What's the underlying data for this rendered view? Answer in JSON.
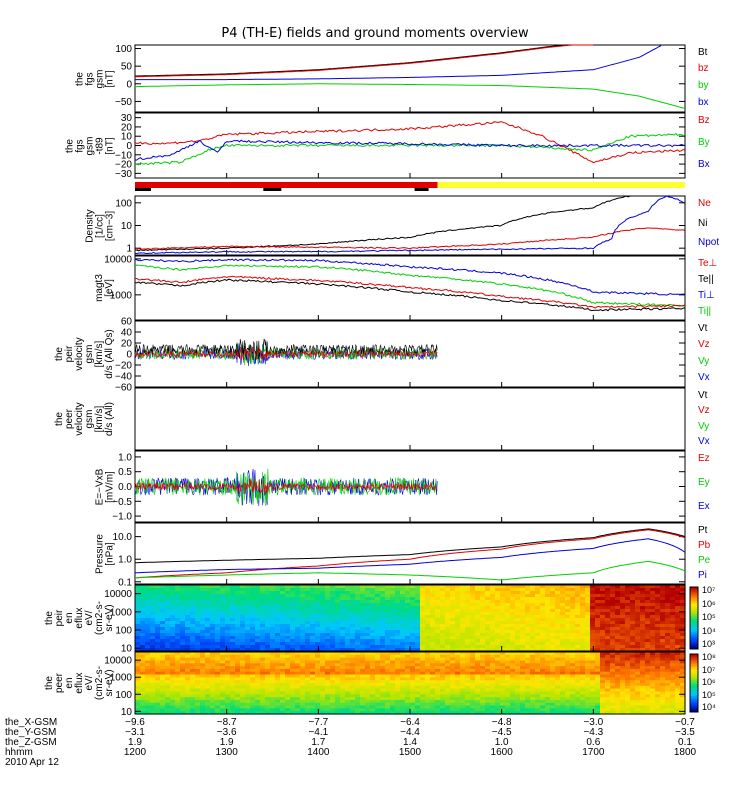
{
  "title": "P4 (TH-E) fields and ground moments overview",
  "colors": {
    "black": "#000000",
    "red": "#e00000",
    "green": "#00d000",
    "blue": "#0000e0",
    "yellow": "#ffff30"
  },
  "time": {
    "start": 1200,
    "end": 1800
  },
  "panels": [
    {
      "key": "fgs",
      "ylabel": [
        "the",
        "fgs",
        "gsm",
        "[nT]"
      ],
      "ticks": [
        "100",
        "50",
        "0",
        "−50"
      ],
      "tickvals": [
        100,
        50,
        0,
        -50
      ],
      "ymin": -80,
      "ymax": 110,
      "legend": [
        {
          "t": "Bt",
          "c": "black"
        },
        {
          "t": "bz",
          "c": "red"
        },
        {
          "t": "by",
          "c": "green"
        },
        {
          "t": "bx",
          "c": "blue"
        }
      ]
    },
    {
      "key": "fgs_dsl",
      "ylabel": [
        "the",
        "fgs",
        "gsm",
        "-t89",
        "[nT]"
      ],
      "ticks": [
        "30",
        "20",
        "10",
        "0",
        "−10",
        "−20",
        "−30"
      ],
      "tickvals": [
        30,
        20,
        10,
        0,
        -10,
        -20,
        -30
      ],
      "ymin": -35,
      "ymax": 35,
      "legend": [
        {
          "t": "Bz",
          "c": "red"
        },
        {
          "t": "By",
          "c": "green"
        },
        {
          "t": "Bx",
          "c": "blue"
        }
      ]
    },
    {
      "key": "density",
      "ylabel": [
        "Density",
        "[1/cc]",
        "[cm−3]"
      ],
      "ticks": [
        "100",
        "10",
        "1"
      ],
      "tickvals": [
        100,
        10,
        1
      ],
      "log": true,
      "ymin": 0.5,
      "ymax": 200,
      "legend": [
        {
          "t": "Ne",
          "c": "red"
        },
        {
          "t": "Ni",
          "c": "black"
        },
        {
          "t": "Npot",
          "c": "blue"
        }
      ]
    },
    {
      "key": "temp",
      "ylabel": [
        "magt3",
        "[eV]"
      ],
      "ticks": [
        "10000",
        "1000"
      ],
      "tickvals": [
        10000,
        1000
      ],
      "log": true,
      "ymin": 200,
      "ymax": 12000,
      "legend": [
        {
          "t": "Te⊥",
          "c": "red"
        },
        {
          "t": "Te||",
          "c": "black"
        },
        {
          "t": "Ti⊥",
          "c": "blue"
        },
        {
          "t": "Ti||",
          "c": "green"
        }
      ]
    },
    {
      "key": "peir_vel",
      "ylabel": [
        "the",
        "peir",
        "velocity",
        "gsm",
        "[km/s]",
        "d/s (All Qs)"
      ],
      "ticks": [
        "60",
        "40",
        "20",
        "0",
        "−20",
        "−40",
        "−60"
      ],
      "tickvals": [
        60,
        40,
        20,
        0,
        -20,
        -40,
        -60
      ],
      "ymin": -60,
      "ymax": 60,
      "legend": [
        {
          "t": "Vt",
          "c": "black"
        },
        {
          "t": "Vz",
          "c": "red"
        },
        {
          "t": "Vy",
          "c": "green"
        },
        {
          "t": "Vx",
          "c": "blue"
        }
      ]
    },
    {
      "key": "peer_vel",
      "ylabel": [
        "the",
        "peer",
        "velocity",
        "gsm",
        "[km/s]",
        "d/s (All)"
      ],
      "ticks": [],
      "tickvals": [],
      "ymin": -1,
      "ymax": 1,
      "legend": [
        {
          "t": "Vt",
          "c": "black"
        },
        {
          "t": "Vz",
          "c": "red"
        },
        {
          "t": "Vy",
          "c": "green"
        },
        {
          "t": "Vx",
          "c": "blue"
        }
      ]
    },
    {
      "key": "efield",
      "ylabel": [
        "E=−VxB",
        "[mV/m]"
      ],
      "ticks": [
        "1.0",
        "0.5",
        "0.0",
        "−0.5",
        "−1.0"
      ],
      "tickvals": [
        1,
        0.5,
        0,
        -0.5,
        -1
      ],
      "ymin": -1.2,
      "ymax": 1.2,
      "legend": [
        {
          "t": "Ez",
          "c": "red"
        },
        {
          "t": "Ey",
          "c": "green"
        },
        {
          "t": "Ex",
          "c": "blue"
        }
      ]
    },
    {
      "key": "pressure",
      "ylabel": [
        "Pressure",
        "[nPa]"
      ],
      "ticks": [
        "10.0",
        "1.0",
        "0.1"
      ],
      "tickvals": [
        10,
        1,
        0.1
      ],
      "log": true,
      "ymin": 0.08,
      "ymax": 40,
      "legend": [
        {
          "t": "Pt",
          "c": "black"
        },
        {
          "t": "Pb",
          "c": "red"
        },
        {
          "t": "Pe",
          "c": "green"
        },
        {
          "t": "Pi",
          "c": "blue"
        }
      ]
    },
    {
      "key": "peir_spec",
      "ylabel": [
        "the",
        "peir",
        "en",
        "eflux",
        "eV/",
        "(cm2-s-",
        "sr-eV)"
      ],
      "ticks": [
        "10000",
        "1000",
        "100",
        "10"
      ],
      "tickvals": [
        10000,
        1000,
        100,
        10
      ],
      "log": true,
      "ymin": 7,
      "ymax": 30000,
      "cbar": [
        "10⁷",
        "10⁶",
        "10⁵",
        "10⁴",
        "10³"
      ]
    },
    {
      "key": "peer_spec",
      "ylabel": [
        "the",
        "peer",
        "en",
        "eflux",
        "eV/",
        "(cm2-s-",
        "sr-eV)"
      ],
      "ticks": [
        "10000",
        "1000",
        "100",
        "10"
      ],
      "tickvals": [
        10000,
        1000,
        100,
        10
      ],
      "log": true,
      "ymin": 7,
      "ymax": 30000,
      "cbar": [
        "10⁸",
        "10⁷",
        "10⁶",
        "10⁵",
        "10⁴"
      ]
    }
  ],
  "chart_data": {
    "type": "line",
    "title": "P4 (TH-E) fields and ground moments overview",
    "x_times": [
      1200,
      1300,
      1400,
      1500,
      1600,
      1700,
      1800
    ],
    "series": [
      {
        "panel": "fgs",
        "name": "Bt",
        "x": [
          1200,
          1300,
          1400,
          1500,
          1600,
          1650,
          1700
        ],
        "values": [
          22,
          28,
          40,
          60,
          88,
          105,
          118
        ]
      },
      {
        "panel": "fgs",
        "name": "bz",
        "x": [
          1200,
          1300,
          1400,
          1500,
          1600,
          1650,
          1700
        ],
        "values": [
          20,
          26,
          38,
          58,
          86,
          103,
          116
        ]
      },
      {
        "panel": "fgs",
        "name": "by",
        "x": [
          1200,
          1300,
          1400,
          1500,
          1600,
          1700,
          1750,
          1800
        ],
        "values": [
          -8,
          -3,
          0,
          -2,
          -5,
          -15,
          -35,
          -70
        ]
      },
      {
        "panel": "fgs",
        "name": "bx",
        "x": [
          1200,
          1300,
          1400,
          1500,
          1600,
          1700,
          1750,
          1775
        ],
        "values": [
          12,
          12,
          14,
          18,
          24,
          40,
          75,
          110
        ]
      },
      {
        "panel": "fgs_dsl",
        "name": "Bz",
        "x": [
          1200,
          1230,
          1270,
          1300,
          1400,
          1500,
          1600,
          1640,
          1700,
          1740,
          1800
        ],
        "values": [
          3,
          2,
          5,
          12,
          15,
          18,
          25,
          12,
          -18,
          -8,
          -5
        ]
      },
      {
        "panel": "fgs_dsl",
        "name": "By",
        "x": [
          1200,
          1250,
          1280,
          1300,
          1400,
          1500,
          1600,
          1700,
          1740,
          1800
        ],
        "values": [
          -20,
          -18,
          -5,
          0,
          0,
          0,
          0,
          -5,
          10,
          12
        ]
      },
      {
        "panel": "fgs_dsl",
        "name": "Bx",
        "x": [
          1200,
          1240,
          1270,
          1290,
          1300,
          1400,
          1500,
          1600,
          1700,
          1800
        ],
        "values": [
          -15,
          -10,
          5,
          -8,
          5,
          3,
          2,
          0,
          0,
          0
        ]
      },
      {
        "panel": "density",
        "name": "Ni",
        "x": [
          1200,
          1300,
          1400,
          1500,
          1600,
          1700,
          1740
        ],
        "values": [
          0.8,
          1.0,
          1.5,
          3,
          10,
          60,
          200
        ]
      },
      {
        "panel": "density",
        "name": "Ne",
        "x": [
          1200,
          1300,
          1400,
          1500,
          1600,
          1700,
          1760,
          1800
        ],
        "values": [
          0.9,
          1.2,
          1.1,
          1.0,
          1.5,
          3.0,
          8.0,
          6.0
        ]
      },
      {
        "panel": "density",
        "name": "Npot",
        "x": [
          1200,
          1300,
          1400,
          1500,
          1600,
          1700,
          1720,
          1760,
          1780,
          1800
        ],
        "values": [
          0.6,
          0.7,
          0.7,
          0.8,
          0.9,
          1.0,
          2.5,
          40,
          200,
          100
        ]
      },
      {
        "panel": "temp",
        "name": "Ti⊥",
        "x": [
          1200,
          1250,
          1300,
          1400,
          1500,
          1600,
          1700,
          1800
        ],
        "values": [
          9500,
          8500,
          9500,
          9000,
          6000,
          4000,
          1200,
          1000
        ]
      },
      {
        "panel": "temp",
        "name": "Ti||",
        "x": [
          1200,
          1250,
          1300,
          1400,
          1500,
          1600,
          1700,
          1800
        ],
        "values": [
          6500,
          5000,
          6500,
          6000,
          3500,
          2000,
          600,
          500
        ]
      },
      {
        "panel": "temp",
        "name": "Te⊥",
        "x": [
          1200,
          1250,
          1300,
          1400,
          1500,
          1600,
          1700,
          1800
        ],
        "values": [
          2800,
          2200,
          3200,
          2500,
          1600,
          900,
          450,
          500
        ]
      },
      {
        "panel": "temp",
        "name": "Te||",
        "x": [
          1200,
          1250,
          1300,
          1400,
          1500,
          1600,
          1700,
          1800
        ],
        "values": [
          2200,
          1800,
          2600,
          2000,
          1200,
          700,
          380,
          420
        ]
      },
      {
        "panel": "pressure",
        "name": "Pt",
        "x": [
          1200,
          1300,
          1400,
          1500,
          1600,
          1700,
          1760,
          1800
        ],
        "values": [
          0.7,
          0.9,
          1.1,
          1.6,
          3.5,
          9,
          22,
          10
        ]
      },
      {
        "panel": "pressure",
        "name": "Pb",
        "x": [
          1200,
          1300,
          1400,
          1500,
          1600,
          1700,
          1760,
          1800
        ],
        "values": [
          0.15,
          0.25,
          0.5,
          1.0,
          2.8,
          8,
          20,
          9
        ]
      },
      {
        "panel": "pressure",
        "name": "Pi",
        "x": [
          1200,
          1300,
          1400,
          1500,
          1600,
          1700,
          1760,
          1800
        ],
        "values": [
          0.25,
          0.35,
          0.4,
          0.6,
          1.2,
          3,
          8,
          2
        ]
      },
      {
        "panel": "pressure",
        "name": "Pe",
        "x": [
          1200,
          1300,
          1400,
          1500,
          1600,
          1700,
          1760,
          1800
        ],
        "values": [
          0.15,
          0.2,
          0.25,
          0.2,
          0.12,
          0.25,
          0.8,
          0.3
        ]
      }
    ]
  },
  "footer": {
    "rows": [
      {
        "label": "the_X-GSM",
        "vals": [
          "−9.6",
          "−8.7",
          "−7.7",
          "−6.4",
          "−4.8",
          "−3.0",
          "−0.7"
        ]
      },
      {
        "label": "the_Y-GSM",
        "vals": [
          "−3.1",
          "−3.6",
          "−4.1",
          "−4.4",
          "−4.5",
          "−4.3",
          "−3.5"
        ]
      },
      {
        "label": "the_Z-GSM",
        "vals": [
          "1.9",
          "1.9",
          "1.7",
          "1.4",
          "1.0",
          "0.6",
          "0.1"
        ]
      },
      {
        "label": "hhmm",
        "vals": [
          "1200",
          "1300",
          "1400",
          "1500",
          "1600",
          "1700",
          "1800"
        ]
      }
    ],
    "date": "2010 Apr 12"
  }
}
